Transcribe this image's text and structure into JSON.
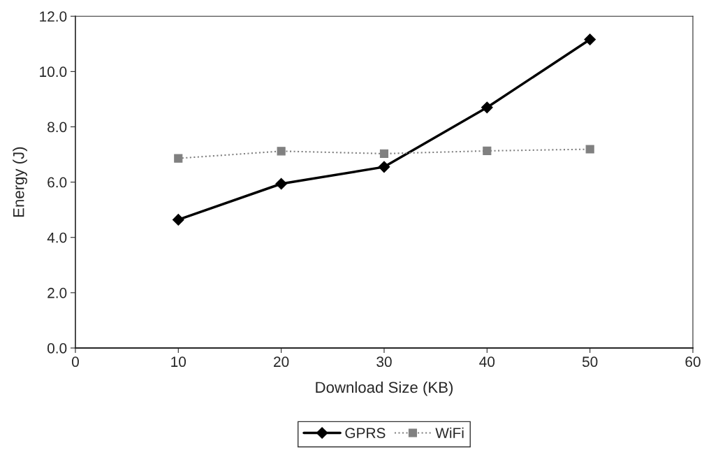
{
  "chart_data": {
    "type": "line",
    "xlabel": "Download Size (KB)",
    "ylabel": "Energy (J)",
    "x": [
      10,
      20,
      30,
      40,
      50
    ],
    "series": [
      {
        "name": "GPRS",
        "color": "#000000",
        "values": [
          4.64,
          5.94,
          6.55,
          8.7,
          11.16
        ],
        "marker": "diamond",
        "line_style": "solid"
      },
      {
        "name": "WiFi",
        "color": "#808080",
        "values": [
          6.86,
          7.12,
          7.03,
          7.13,
          7.19
        ],
        "marker": "square",
        "line_style": "dotted"
      }
    ],
    "xlim": [
      0,
      60
    ],
    "xticks": [
      0,
      10,
      20,
      30,
      40,
      50,
      60
    ],
    "ylim": [
      0,
      12
    ],
    "yticks": [
      {
        "value": 0,
        "label": "0.0"
      },
      {
        "value": 2,
        "label": "2.0"
      },
      {
        "value": 4,
        "label": "4.0"
      },
      {
        "value": 6,
        "label": "6.0"
      },
      {
        "value": 8,
        "label": "8.0"
      },
      {
        "value": 10,
        "label": "10.0"
      },
      {
        "value": 12,
        "label": "12.0"
      }
    ],
    "grid": false,
    "legend": "bottom"
  }
}
